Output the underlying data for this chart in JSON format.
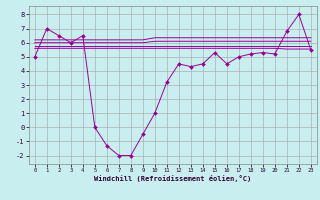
{
  "xlabel": "Windchill (Refroidissement éolien,°C)",
  "background_color": "#c8eef0",
  "line_color": "#990099",
  "grid_color": "#b0b0b0",
  "xlim": [
    -0.5,
    23.5
  ],
  "ylim": [
    -2.6,
    8.6
  ],
  "yticks": [
    -2,
    -1,
    0,
    1,
    2,
    3,
    4,
    5,
    6,
    7,
    8
  ],
  "xticks": [
    0,
    1,
    2,
    3,
    4,
    5,
    6,
    7,
    8,
    9,
    10,
    11,
    12,
    13,
    14,
    15,
    16,
    17,
    18,
    19,
    20,
    21,
    22,
    23
  ],
  "hours": [
    0,
    1,
    2,
    3,
    4,
    5,
    6,
    7,
    8,
    9,
    10,
    11,
    12,
    13,
    14,
    15,
    16,
    17,
    18,
    19,
    20,
    21,
    22,
    23
  ],
  "temp_main": [
    5.0,
    7.0,
    6.5,
    6.0,
    6.5,
    0.0,
    -1.3,
    -2.0,
    -2.0,
    -0.5,
    1.0,
    3.2,
    4.5,
    4.3,
    4.5,
    5.3,
    4.5,
    5.0,
    5.2,
    5.3,
    5.2,
    6.8,
    8.0,
    5.5
  ],
  "temp_line1": [
    6.2,
    6.2,
    6.2,
    6.2,
    6.2,
    6.2,
    6.2,
    6.2,
    6.2,
    6.2,
    6.35,
    6.35,
    6.35,
    6.35,
    6.35,
    6.35,
    6.35,
    6.35,
    6.35,
    6.35,
    6.35,
    6.35,
    6.35,
    6.35
  ],
  "temp_line2": [
    6.0,
    6.0,
    6.0,
    6.0,
    6.0,
    6.0,
    6.0,
    6.0,
    6.0,
    6.0,
    6.1,
    6.1,
    6.1,
    6.1,
    6.1,
    6.1,
    6.1,
    6.1,
    6.1,
    6.1,
    6.1,
    6.1,
    6.1,
    6.1
  ],
  "temp_line3": [
    5.8,
    5.8,
    5.8,
    5.8,
    5.8,
    5.8,
    5.8,
    5.8,
    5.8,
    5.8,
    5.8,
    5.8,
    5.8,
    5.8,
    5.8,
    5.8,
    5.8,
    5.8,
    5.8,
    5.8,
    5.8,
    5.8,
    5.8,
    5.8
  ],
  "temp_line4": [
    5.6,
    5.6,
    5.6,
    5.6,
    5.6,
    5.6,
    5.6,
    5.6,
    5.6,
    5.6,
    5.6,
    5.6,
    5.6,
    5.6,
    5.6,
    5.6,
    5.6,
    5.6,
    5.6,
    5.6,
    5.6,
    5.55,
    5.55,
    5.55
  ]
}
